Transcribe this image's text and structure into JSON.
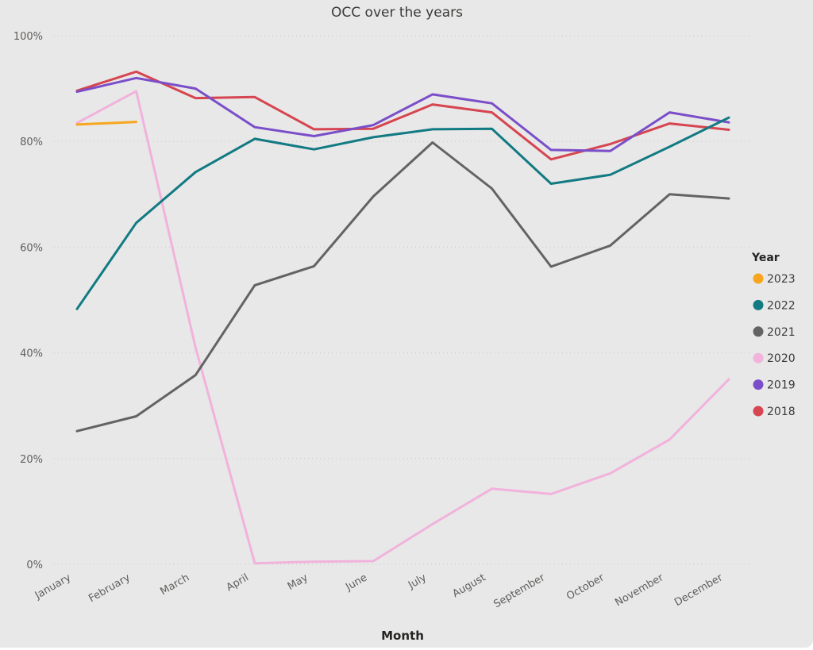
{
  "chart_data": {
    "type": "line",
    "title": "OCC over the years",
    "xlabel": "Month",
    "ylabel": "%",
    "categories": [
      "January",
      "February",
      "March",
      "April",
      "May",
      "June",
      "July",
      "August",
      "September",
      "October",
      "November",
      "December"
    ],
    "y_ticks": [
      "0%",
      "20%",
      "40%",
      "60%",
      "80%",
      "100%"
    ],
    "ylim": [
      0,
      100
    ],
    "grid": true,
    "legend": {
      "title": "Year",
      "placement": "right"
    },
    "series": [
      {
        "name": "2023",
        "color": "#f8a61e",
        "values": [
          83.2,
          83.7,
          null,
          null,
          null,
          null,
          null,
          null,
          null,
          null,
          null,
          null
        ]
      },
      {
        "name": "2022",
        "color": "#127a83",
        "values": [
          48.3,
          64.6,
          74.2,
          80.5,
          78.5,
          80.8,
          82.3,
          82.4,
          72.0,
          73.7,
          79.0,
          84.5
        ]
      },
      {
        "name": "2021",
        "color": "#636363",
        "values": [
          25.2,
          28.0,
          35.8,
          52.8,
          56.4,
          69.6,
          79.8,
          71.1,
          56.3,
          60.3,
          70.0,
          69.2
        ]
      },
      {
        "name": "2020",
        "color": "#f1b2dc",
        "values": [
          83.5,
          89.5,
          41.0,
          0.2,
          0.5,
          0.6,
          7.6,
          14.3,
          13.3,
          17.2,
          23.6,
          35.0
        ]
      },
      {
        "name": "2019",
        "color": "#7a4ec9",
        "values": [
          89.4,
          92.0,
          90.0,
          82.7,
          81.0,
          83.1,
          88.9,
          87.2,
          78.4,
          78.2,
          85.5,
          83.6
        ]
      },
      {
        "name": "2018",
        "color": "#d64550",
        "values": [
          89.6,
          93.2,
          88.2,
          88.4,
          82.3,
          82.4,
          87.0,
          85.5,
          76.6,
          79.5,
          83.4,
          82.2
        ]
      }
    ]
  }
}
